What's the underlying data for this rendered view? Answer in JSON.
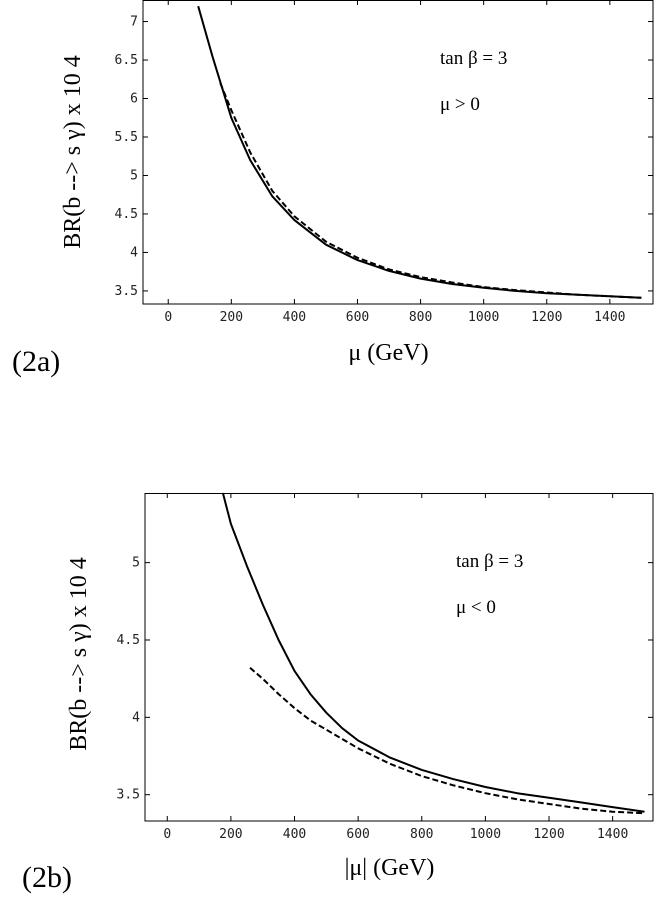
{
  "chart_data": [
    {
      "type": "line",
      "panel_label": "(2a)",
      "xlabel": "μ (GeV)",
      "ylabel": "BR(b --> s γ) x 10 4",
      "annotations": [
        "tan β = 3",
        "μ > 0"
      ],
      "xlim": [
        -80,
        1540
      ],
      "ylim": [
        3.33,
        7.28
      ],
      "x_ticks": [
        0,
        200,
        400,
        600,
        800,
        1000,
        1200,
        1400
      ],
      "y_ticks": [
        3.5,
        4,
        4.5,
        5,
        5.5,
        6,
        6.5,
        7
      ],
      "series": [
        {
          "style": "solid",
          "x": [
            95,
            140,
            200,
            260,
            330,
            400,
            500,
            600,
            700,
            800,
            900,
            1000,
            1100,
            1200,
            1300,
            1400,
            1500
          ],
          "y": [
            7.2,
            6.55,
            5.75,
            5.2,
            4.73,
            4.42,
            4.1,
            3.9,
            3.76,
            3.66,
            3.59,
            3.54,
            3.5,
            3.47,
            3.45,
            3.43,
            3.41
          ]
        },
        {
          "style": "dashed",
          "x": [
            165,
            200,
            260,
            330,
            400,
            500,
            600,
            700,
            800,
            900,
            1000,
            1100,
            1200,
            1300,
            1400,
            1500
          ],
          "y": [
            6.2,
            5.85,
            5.3,
            4.8,
            4.47,
            4.14,
            3.93,
            3.78,
            3.68,
            3.61,
            3.55,
            3.51,
            3.48,
            3.45,
            3.43,
            3.41
          ]
        }
      ]
    },
    {
      "type": "line",
      "panel_label": "(2b)",
      "xlabel": "|μ| (GeV)",
      "ylabel": "BR(b --> s γ) x 10 4",
      "annotations": [
        "tan β = 3",
        "μ < 0"
      ],
      "xlim": [
        -70,
        1530
      ],
      "ylim": [
        3.33,
        5.45
      ],
      "x_ticks": [
        0,
        200,
        400,
        600,
        800,
        1000,
        1200,
        1400
      ],
      "y_ticks": [
        3.5,
        4,
        4.5,
        5
      ],
      "series": [
        {
          "style": "solid",
          "x": [
            175,
            200,
            250,
            300,
            350,
            400,
            450,
            500,
            550,
            600,
            700,
            800,
            900,
            1000,
            1100,
            1200,
            1300,
            1400,
            1500
          ],
          "y": [
            5.45,
            5.25,
            4.98,
            4.73,
            4.5,
            4.3,
            4.15,
            4.03,
            3.93,
            3.85,
            3.74,
            3.66,
            3.6,
            3.55,
            3.51,
            3.48,
            3.45,
            3.42,
            3.39
          ]
        },
        {
          "style": "dashed",
          "x": [
            260,
            300,
            350,
            400,
            450,
            500,
            600,
            700,
            800,
            900,
            1000,
            1100,
            1200,
            1300,
            1400,
            1500
          ],
          "y": [
            4.32,
            4.25,
            4.15,
            4.06,
            3.98,
            3.92,
            3.8,
            3.7,
            3.62,
            3.56,
            3.51,
            3.47,
            3.44,
            3.41,
            3.39,
            3.38
          ]
        }
      ]
    }
  ]
}
